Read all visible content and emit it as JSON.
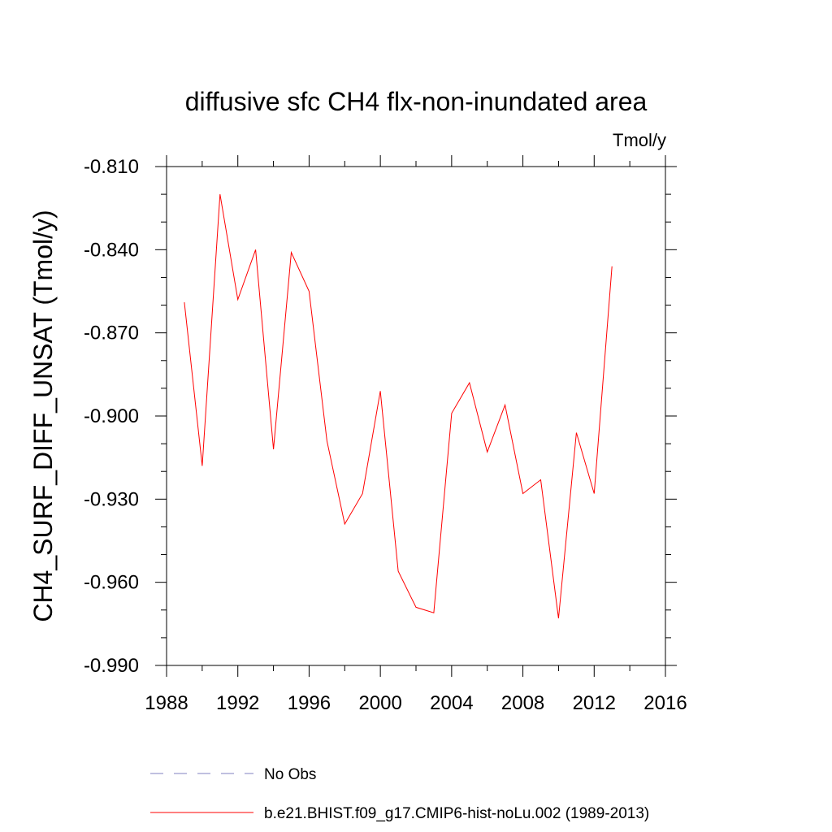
{
  "chart_data": {
    "type": "line",
    "title": "diffusive sfc CH4 flx-non-inundated area",
    "units_label": "Tmol/y",
    "ylabel": "CH4_SURF_DIFF_UNSAT  (Tmol/y)",
    "xlabel": "",
    "xlim": [
      1988,
      2016
    ],
    "ylim": [
      -0.99,
      -0.81
    ],
    "x_ticks": [
      1988,
      1992,
      1996,
      2000,
      2004,
      2008,
      2012,
      2016
    ],
    "x_tick_labels": [
      "1988",
      "1992",
      "1996",
      "2000",
      "2004",
      "2008",
      "2012",
      "2016"
    ],
    "y_ticks": [
      -0.99,
      -0.96,
      -0.93,
      -0.9,
      -0.87,
      -0.84,
      -0.81
    ],
    "y_tick_labels": [
      "-0.990",
      "-0.960",
      "-0.930",
      "-0.900",
      "-0.870",
      "-0.840",
      "-0.810"
    ],
    "grid": false,
    "legend_position": "bottom",
    "series": [
      {
        "name": "b.e21.BHIST.f09_g17.CMIP6-hist-noLu.002 (1989-2013)",
        "color": "#ff0000",
        "style": "solid",
        "x": [
          1989,
          1990,
          1991,
          1992,
          1993,
          1994,
          1995,
          1996,
          1997,
          1998,
          1999,
          2000,
          2001,
          2002,
          2003,
          2004,
          2005,
          2006,
          2007,
          2008,
          2009,
          2010,
          2011,
          2012,
          2013
        ],
        "y": [
          -0.859,
          -0.918,
          -0.82,
          -0.858,
          -0.84,
          -0.912,
          -0.841,
          -0.855,
          -0.909,
          -0.939,
          -0.928,
          -0.891,
          -0.956,
          -0.969,
          -0.971,
          -0.899,
          -0.888,
          -0.913,
          -0.896,
          -0.928,
          -0.923,
          -0.973,
          -0.906,
          -0.928,
          -0.846
        ]
      }
    ],
    "legend": [
      {
        "label": "No Obs",
        "color": "#8080c0",
        "style": "dashed"
      },
      {
        "label": "b.e21.BHIST.f09_g17.CMIP6-hist-noLu.002 (1989-2013)",
        "color": "#ff0000",
        "style": "solid"
      }
    ]
  }
}
